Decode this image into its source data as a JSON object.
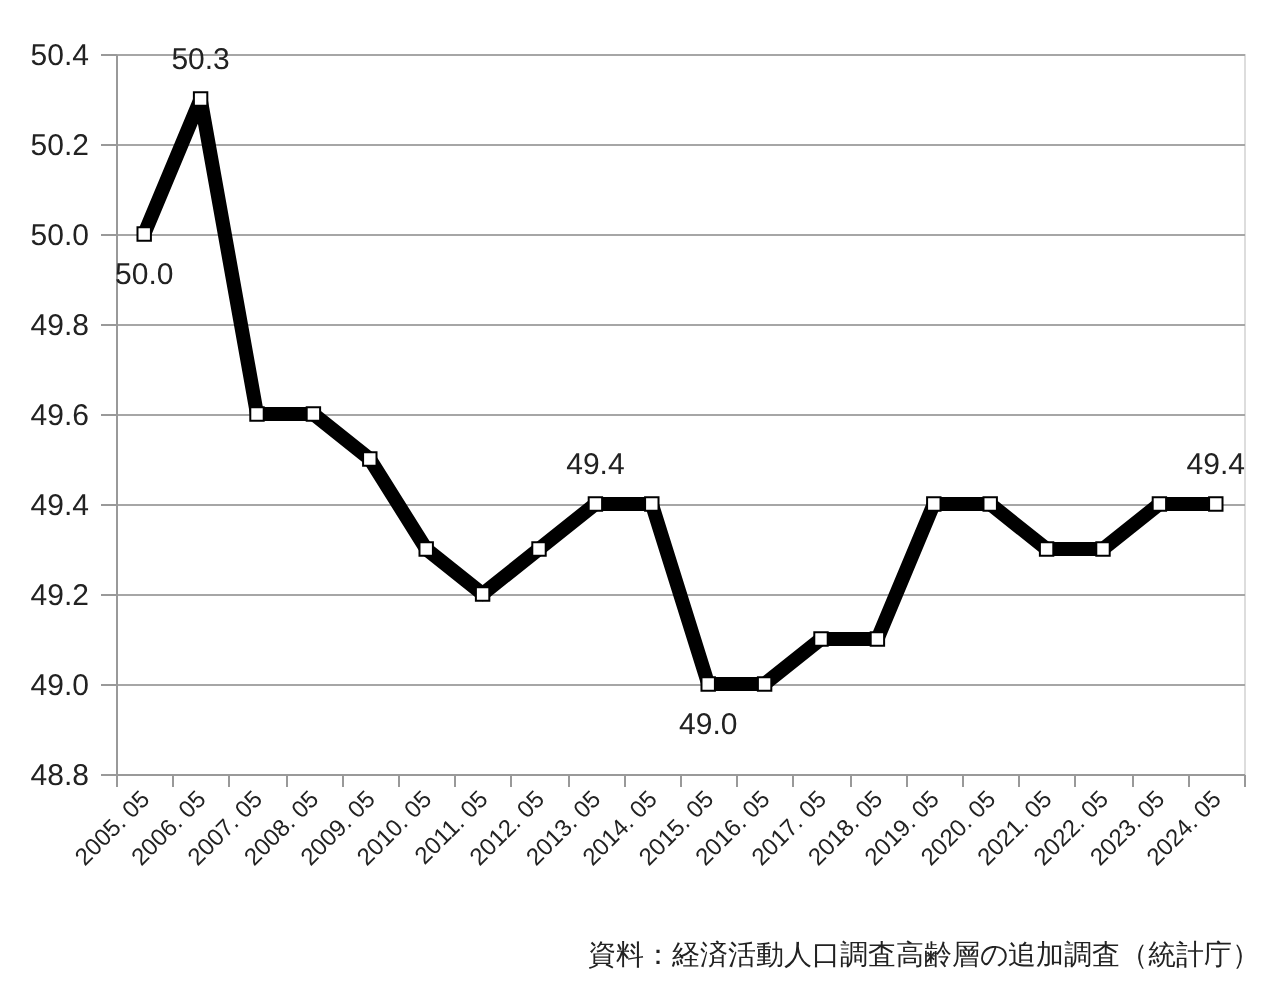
{
  "chart_data": {
    "type": "line",
    "categories": [
      "2005. 05",
      "2006. 05",
      "2007. 05",
      "2008. 05",
      "2009. 05",
      "2010. 05",
      "2011. 05",
      "2012. 05",
      "2013. 05",
      "2014. 05",
      "2015. 05",
      "2016. 05",
      "2017. 05",
      "2018. 05",
      "2019. 05",
      "2020. 05",
      "2021. 05",
      "2022. 05",
      "2023. 05",
      "2024. 05"
    ],
    "series": [
      {
        "color": "#000000",
        "values": [
          50.0,
          50.3,
          49.6,
          49.6,
          49.5,
          49.3,
          49.2,
          49.3,
          49.4,
          49.4,
          49.0,
          49.0,
          49.1,
          49.1,
          49.4,
          49.4,
          49.3,
          49.3,
          49.4,
          49.4
        ],
        "value_labels": [
          "50.0",
          "50.3",
          null,
          null,
          null,
          null,
          null,
          null,
          "49.4",
          null,
          "49.0",
          null,
          null,
          null,
          null,
          null,
          null,
          null,
          null,
          "49.4"
        ]
      }
    ],
    "ylim": [
      48.8,
      50.4
    ],
    "yticks": [
      {
        "value": 48.8,
        "label": "48.8"
      },
      {
        "value": 49.0,
        "label": "49.0"
      },
      {
        "value": 49.2,
        "label": "49.2"
      },
      {
        "value": 49.4,
        "label": "49.4"
      },
      {
        "value": 49.6,
        "label": "49.6"
      },
      {
        "value": 49.8,
        "label": "49.8"
      },
      {
        "value": 50.0,
        "label": "50.0"
      },
      {
        "value": 50.2,
        "label": "50.2"
      },
      {
        "value": 50.4,
        "label": "50.4"
      }
    ],
    "grid": "y",
    "marker": "square",
    "legend": false,
    "annotations": [
      "資料：経済活動人口調査高齢層の追加調査（統計庁）"
    ]
  }
}
